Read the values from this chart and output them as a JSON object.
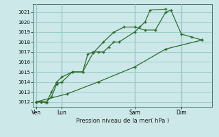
{
  "title": "Pression niveau de la mer( hPa )",
  "bg_color": "#cce8e8",
  "grid_color": "#99cccc",
  "line_color": "#2d6b2d",
  "ylim": [
    1011.5,
    1021.8
  ],
  "yticks": [
    1012,
    1013,
    1014,
    1015,
    1016,
    1017,
    1018,
    1019,
    1020,
    1021
  ],
  "xtick_labels": [
    "Ven",
    "Lun",
    "Sam",
    "Dim"
  ],
  "xtick_positions": [
    0,
    2.5,
    9.5,
    14.0
  ],
  "xlim": [
    -0.3,
    17.0
  ],
  "vline_positions": [
    0,
    2.5,
    9.5,
    14.0
  ],
  "line1_x": [
    0.0,
    0.5,
    1.0,
    1.5,
    2.0,
    2.5,
    3.5,
    4.5,
    5.0,
    5.5,
    6.0,
    6.5,
    7.0,
    7.5,
    8.0,
    9.5,
    10.0,
    10.5,
    11.0,
    12.5
  ],
  "line1_y": [
    1012.0,
    1012.0,
    1011.9,
    1013.0,
    1014.0,
    1014.5,
    1015.0,
    1015.0,
    1016.8,
    1017.0,
    1017.0,
    1017.0,
    1017.5,
    1018.0,
    1018.0,
    1019.0,
    1019.5,
    1020.0,
    1021.2,
    1021.3
  ],
  "line2_x": [
    0.0,
    0.5,
    1.0,
    1.5,
    2.0,
    2.5,
    3.5,
    4.5,
    5.5,
    6.5,
    7.5,
    8.5,
    9.5,
    10.5,
    11.5,
    12.5,
    13.0,
    14.0,
    15.0,
    16.0
  ],
  "line2_y": [
    1012.0,
    1012.0,
    1012.0,
    1012.5,
    1013.8,
    1014.0,
    1015.0,
    1015.0,
    1016.9,
    1018.0,
    1019.0,
    1019.5,
    1019.5,
    1019.2,
    1019.2,
    1021.0,
    1021.2,
    1018.8,
    1018.5,
    1018.2
  ],
  "line3_x": [
    0.0,
    3.0,
    6.0,
    9.5,
    12.5,
    16.0
  ],
  "line3_y": [
    1012.0,
    1012.8,
    1014.0,
    1015.5,
    1017.3,
    1018.2
  ]
}
